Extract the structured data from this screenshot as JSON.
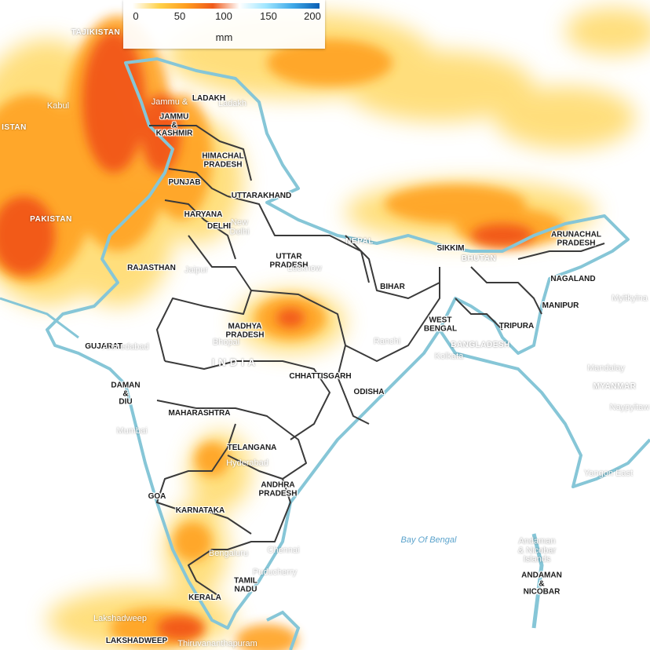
{
  "legend": {
    "ticks": [
      "0",
      "50",
      "100",
      "150",
      "200"
    ],
    "unit": "mm",
    "colors": [
      "#ffffff",
      "#ffd24a",
      "#ff9e1f",
      "#f05a1a",
      "#ffffff",
      "#9fe6ff",
      "#3fa9e8",
      "#0a5fb4"
    ]
  },
  "colors": {
    "water_boundary": "#86c6d7",
    "state_border": "#3a3a3a",
    "rain_light": "#ffd966",
    "rain_medium": "#ffa224",
    "rain_heavy": "#f04d19"
  },
  "labels": {
    "countries": {
      "tajikistan": "TAJIKISTAN",
      "afghanistan_partial": "ISTAN",
      "pakistan": "PAKISTAN",
      "nepal": "NEPAL",
      "bhutan": "BHUTAN",
      "bangladesh": "BANGLADESH",
      "myanmar": "MYANMAR",
      "india": "INDIA"
    },
    "states": {
      "ladakh": "LADAKH",
      "jammu_kashmir": [
        "JAMMU",
        "&",
        "KASHMIR"
      ],
      "himachal": [
        "HIMACHAL",
        "PRADESH"
      ],
      "punjab": "PUNJAB",
      "uttarakhand": "UTTARAKHAND",
      "haryana": "HARYANA",
      "delhi": "DELHI",
      "rajasthan": "RAJASTHAN",
      "uttar_pradesh": [
        "UTTAR",
        "PRADESH"
      ],
      "bihar": "BIHAR",
      "sikkim": "SIKKIM",
      "arunachal": [
        "ARUNACHAL",
        "PRADESH"
      ],
      "nagaland": "NAGALAND",
      "manipur": "MANIPUR",
      "tripura": "TRIPURA",
      "west_bengal": [
        "WEST",
        "BENGAL"
      ],
      "madhya_pradesh": [
        "MADHYA",
        "PRADESH"
      ],
      "gujarat": "GUJARAT",
      "daman_diu": [
        "DAMAN",
        "&",
        "DIU"
      ],
      "chhattisgarh": "CHHATTISGARH",
      "odisha": "ODISHA",
      "maharashtra": "MAHARASHTRA",
      "telangana": "TELANGANA",
      "andhra_pradesh": [
        "ANDHRA",
        "PRADESH"
      ],
      "goa": "GOA",
      "karnataka": "KARNATAKA",
      "tamil_nadu": [
        "TAMIL",
        "NADU"
      ],
      "kerala": "KERALA",
      "andaman_nicobar": [
        "ANDAMAN",
        "&",
        "NICOBAR"
      ],
      "lakshadweep": "LAKSHADWEEP"
    },
    "cities": {
      "kabul": "Kabul",
      "jammu_city": "Jammu &",
      "leh": "Ladakh",
      "new_delhi": [
        "New",
        "Delhi"
      ],
      "jaipur": "Jaipur",
      "lucknow": "Lucknow",
      "ahmedabad": "Ahmedabad",
      "bhopal": "Bhopal",
      "ranchi": "Ranchi",
      "kolkata": "Kolkata",
      "mumbai": "Mumbai",
      "hyderabad": "Hyderabad",
      "chennai": "Chennai",
      "bengaluru": "Bengaluru",
      "puducherry": "Puducherry",
      "thiruvananthapuram": "Thiruvananthapuram",
      "lakshadweep_city": "Lakshadweep",
      "myitkyina": "Myitkyina",
      "mandalay": "Mandalay",
      "naypyitaw": "Naypyitaw",
      "yangon": "Yangon East"
    },
    "seas": {
      "bay_of_bengal": "Bay Of Bengal",
      "andaman_islands": [
        "Andaman",
        "& Nicobar",
        "Islands"
      ]
    }
  }
}
